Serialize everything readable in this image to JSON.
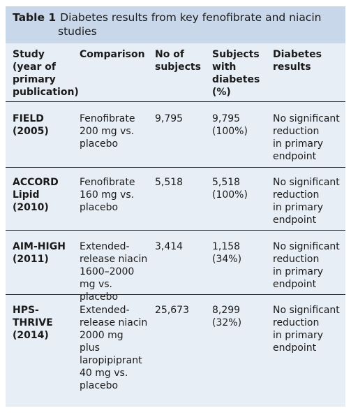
{
  "table": {
    "number": "Table 1",
    "caption_line1": "Diabetes results from key fenofibrate and niacin",
    "caption_line2": "studies",
    "headers": {
      "study": [
        "Study",
        "(year of",
        "primary",
        "publication)"
      ],
      "comparison": [
        "Comparison"
      ],
      "n": [
        "No of",
        "subjects"
      ],
      "with_diabetes": [
        "Subjects",
        "with",
        "diabetes",
        "(%)"
      ],
      "results": [
        "Diabetes",
        "results"
      ]
    },
    "rows": [
      {
        "study": [
          "FIELD",
          "(2005)"
        ],
        "comparison": [
          "Fenofibrate",
          "200 mg vs.",
          "placebo"
        ],
        "n": [
          "9,795"
        ],
        "with_diabetes": [
          "9,795",
          "(100%)"
        ],
        "results": [
          "No significant",
          "reduction",
          "in primary",
          "endpoint"
        ]
      },
      {
        "study": [
          "ACCORD",
          "Lipid",
          "(2010)"
        ],
        "comparison": [
          "Fenofibrate",
          "160 mg vs.",
          "placebo"
        ],
        "n": [
          "5,518"
        ],
        "with_diabetes": [
          "5,518",
          "(100%)"
        ],
        "results": [
          "No significant",
          "reduction",
          "in primary",
          "endpoint"
        ]
      },
      {
        "study": [
          "AIM-HIGH",
          "(2011)"
        ],
        "comparison": [
          "Extended-",
          "release niacin",
          "1600–2000",
          "mg vs. placebo"
        ],
        "n": [
          "3,414"
        ],
        "with_diabetes": [
          "1,158",
          "(34%)"
        ],
        "results": [
          "No significant",
          "reduction",
          "in primary",
          "endpoint"
        ]
      },
      {
        "study": [
          "HPS-THRIVE",
          "(2014)"
        ],
        "comparison": [
          "Extended-",
          "release niacin",
          "2000 mg",
          "plus",
          "laropipiprant",
          "40 mg vs.",
          "placebo"
        ],
        "n": [
          "25,673"
        ],
        "with_diabetes": [
          "8,299",
          "(32%)"
        ],
        "results": [
          "No significant",
          "reduction",
          "in primary",
          "endpoint"
        ]
      }
    ]
  }
}
